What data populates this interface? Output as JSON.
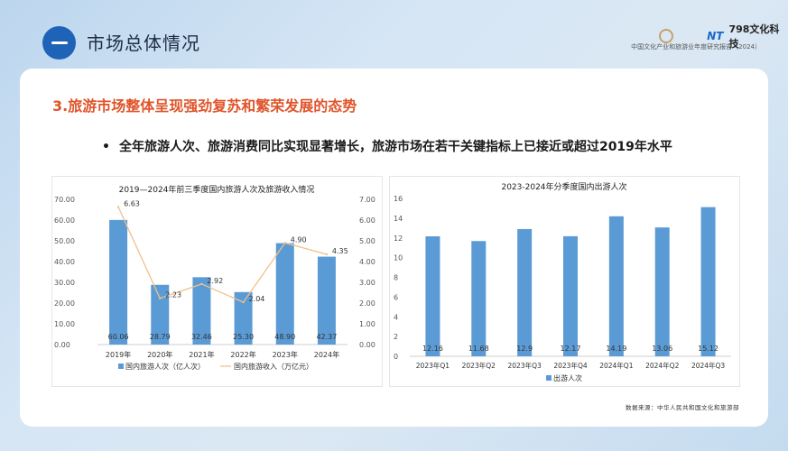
{
  "header": {
    "title": "市场总体情况",
    "subtitle": "中国文化产业和旅游业年度研究报告（2024）",
    "logos": [
      {
        "name": "seal-logo"
      },
      {
        "name": "institute-logo"
      },
      {
        "name": "nt-logo",
        "text": "NT"
      },
      {
        "name": "798-logo",
        "text": "798文化科技"
      }
    ]
  },
  "section": {
    "title": "3.旅游市场整体呈现强劲复苏和繁荣发展的态势",
    "bullet": "全年旅游人次、旅游消费同比实现显著增长，旅游市场在若干关键指标上已接近或超过2019年水平"
  },
  "source": "数据来源：中华人民共和国文化和旅游部",
  "chart_data": [
    {
      "type": "bar",
      "title": "2019—2024年前三季度国内旅游人次及旅游收入情况",
      "categories": [
        "2019年",
        "2020年",
        "2021年",
        "2022年",
        "2023年",
        "2024年"
      ],
      "series": [
        {
          "name": "国内旅游人次（亿人次）",
          "type": "bar",
          "axis": "left",
          "values": [
            60.06,
            28.79,
            32.46,
            25.3,
            48.9,
            42.37
          ],
          "labels": [
            "60.06",
            "28.79",
            "32.46",
            "25.30",
            "48.90",
            "42.37"
          ]
        },
        {
          "name": "国内旅游收入（万亿元）",
          "type": "line",
          "axis": "right",
          "values": [
            6.63,
            2.23,
            2.92,
            2.04,
            4.9,
            4.35
          ],
          "labels": [
            "6.63",
            "2.23",
            "2.92",
            "2.04",
            "4.90",
            "4.35"
          ]
        }
      ],
      "yleft": {
        "ticks": [
          "0.00",
          "10.00",
          "20.00",
          "30.00",
          "40.00",
          "50.00",
          "60.00",
          "70.00"
        ],
        "ylim": [
          0,
          70
        ]
      },
      "yright": {
        "ticks": [
          "0.00",
          "1.00",
          "2.00",
          "3.00",
          "4.00",
          "5.00",
          "6.00",
          "7.00"
        ],
        "ylim": [
          0,
          7
        ]
      },
      "colors": {
        "bar": "#5b9bd5",
        "line": "#f0c08a"
      },
      "legend": "bottom"
    },
    {
      "type": "bar",
      "title": "2023-2024年分季度国内出游人次",
      "categories": [
        "2023年Q1",
        "2023年Q2",
        "2023年Q3",
        "2023年Q4",
        "2024年Q1",
        "2024年Q2",
        "2024年Q3"
      ],
      "series": [
        {
          "name": "出游人次",
          "values": [
            12.16,
            11.68,
            12.9,
            12.17,
            14.19,
            13.06,
            15.12
          ],
          "labels": [
            "12.16",
            "11.68",
            "12.9",
            "12.17",
            "14.19",
            "13.06",
            "15.12"
          ]
        }
      ],
      "yticks": [
        "0",
        "2",
        "4",
        "6",
        "8",
        "10",
        "12",
        "14",
        "16"
      ],
      "ylim": [
        0,
        16
      ],
      "colors": {
        "bar": "#5b9bd5"
      },
      "legend": "bottom"
    }
  ]
}
